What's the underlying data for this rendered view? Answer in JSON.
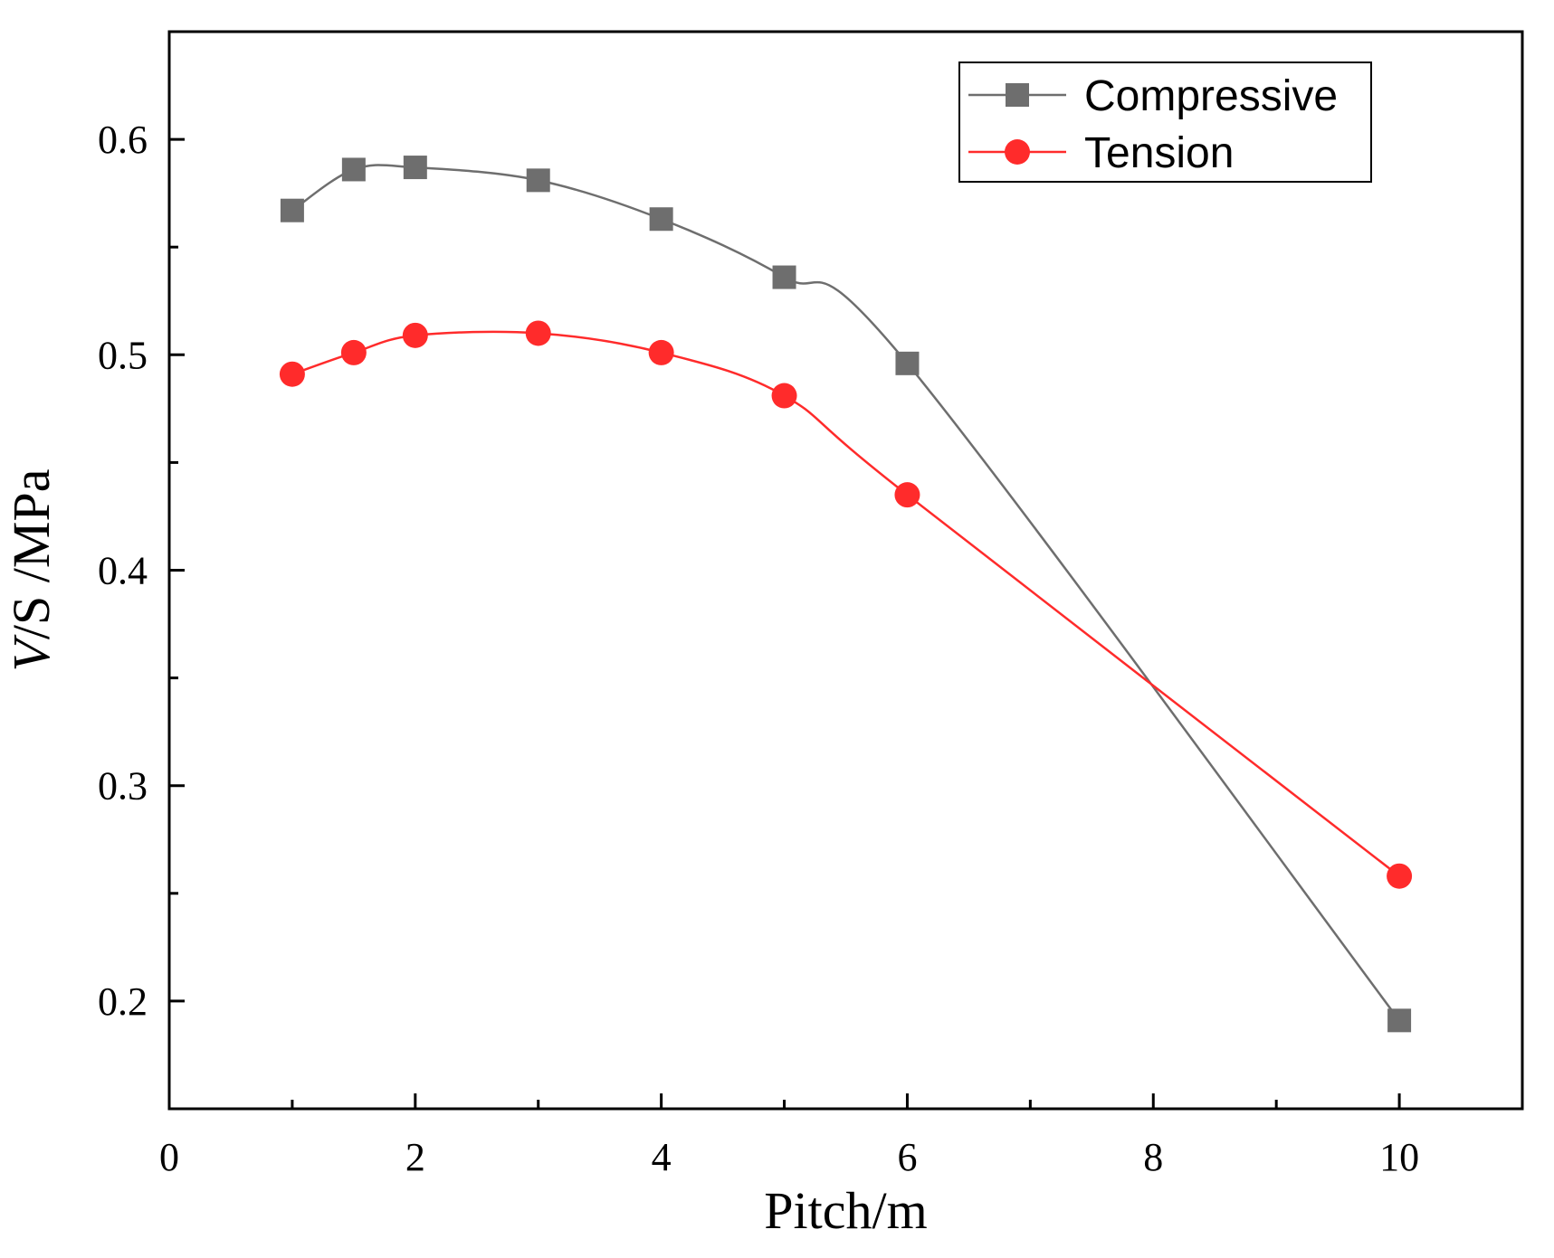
{
  "chart_data": {
    "type": "line",
    "title": "",
    "xlabel": "Pitch/m",
    "ylabel_italic": "V",
    "ylabel_rest": "/S /MPa",
    "xlim": [
      0,
      11
    ],
    "ylim": [
      0.15,
      0.65
    ],
    "xticks_major": [
      0,
      2,
      4,
      6,
      8,
      10
    ],
    "xticks_minor": [
      1,
      3,
      5,
      7,
      9
    ],
    "yticks_major": [
      0.2,
      0.3,
      0.4,
      0.5,
      0.6
    ],
    "yticks_minor": [
      0.25,
      0.35,
      0.45,
      0.55
    ],
    "xtick_labels": [
      "0",
      "2",
      "4",
      "6",
      "8",
      "10"
    ],
    "ytick_labels": [
      "0.2",
      "0.3",
      "0.4",
      "0.5",
      "0.6"
    ],
    "legend_position": "top-right",
    "grid": false,
    "series": [
      {
        "name": "Compressive",
        "marker": "square",
        "color": "#6e6e6e",
        "x": [
          1,
          1.5,
          2,
          3,
          4,
          5,
          6,
          10
        ],
        "values": [
          0.567,
          0.586,
          0.587,
          0.581,
          0.563,
          0.536,
          0.496,
          0.191
        ]
      },
      {
        "name": "Tension",
        "marker": "circle",
        "color": "#ff2b2b",
        "x": [
          1,
          1.5,
          2,
          3,
          4,
          5,
          6,
          10
        ],
        "values": [
          0.491,
          0.501,
          0.509,
          0.51,
          0.501,
          0.481,
          0.435,
          0.258
        ]
      }
    ]
  }
}
